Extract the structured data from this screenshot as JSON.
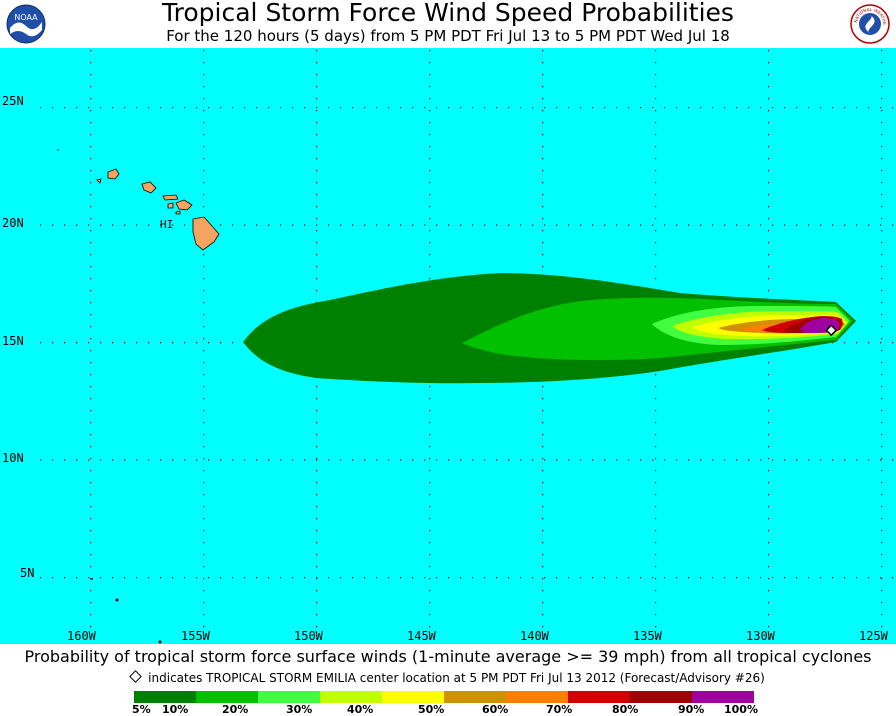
{
  "header": {
    "title": "Tropical Storm Force Wind Speed Probabilities",
    "subtitle": "For the 120 hours (5 days) from 5 PM PDT Fri Jul 13 to 5 PM PDT Wed Jul 18",
    "noaa_logo_text": "NOAA",
    "nws_logo_text": "NATIONAL WEATHER SERVICE"
  },
  "map": {
    "background_color": "#00ffff",
    "land_color": "#f4a460",
    "island_label": "HI",
    "lat_labels": [
      "25N",
      "20N",
      "15N",
      "10N",
      "5N"
    ],
    "lon_labels": [
      "160W",
      "155W",
      "150W",
      "145W",
      "140W",
      "135W",
      "130W",
      "125W"
    ],
    "storm_center": {
      "lat": 15.5,
      "lon": -127.2
    }
  },
  "footer": {
    "main": "Probability of tropical storm force surface winds (1-minute average >= 39 mph) from all tropical cyclones",
    "note": "indicates TROPICAL STORM EMILIA center location at 5 PM PDT Fri Jul 13 2012 (Forecast/Advisory #26)"
  },
  "legend": {
    "colors": [
      "#008000",
      "#00c000",
      "#40ff40",
      "#c0ff00",
      "#ffff00",
      "#d09000",
      "#ff8000",
      "#d00000",
      "#a00000",
      "#a000a0"
    ],
    "labels": [
      "5%",
      "10%",
      "20%",
      "30%",
      "40%",
      "50%",
      "60%",
      "70%",
      "80%",
      "90%",
      "100%"
    ]
  }
}
